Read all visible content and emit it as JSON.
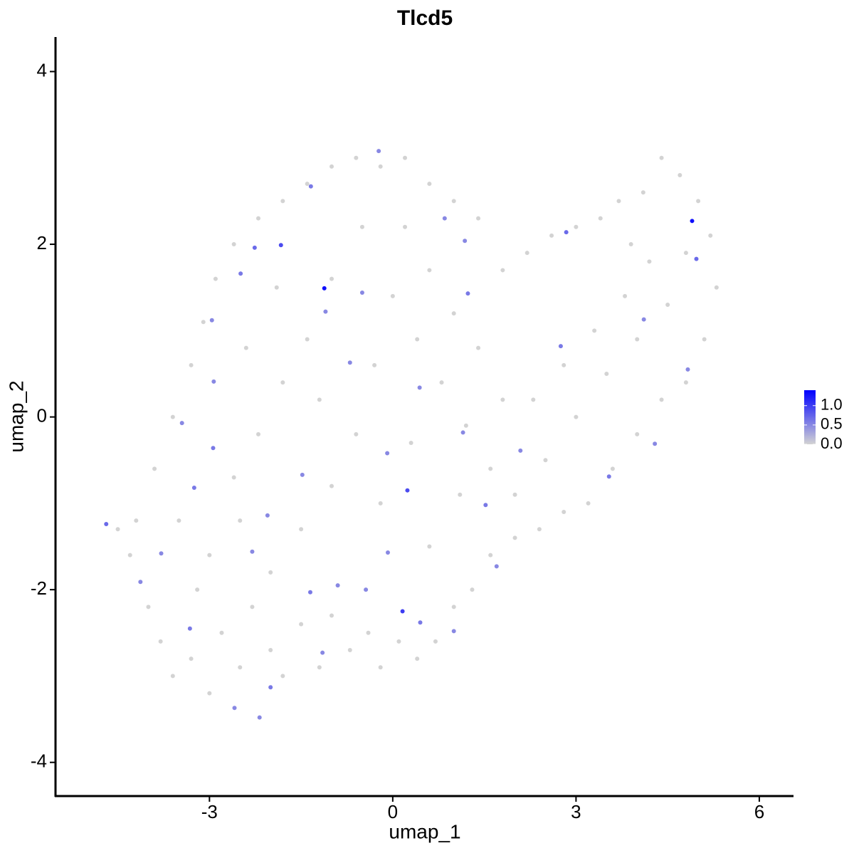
{
  "chart_data": {
    "type": "scatter",
    "title": "Tlcd5",
    "x_label": "umap_1",
    "y_label": "umap_2",
    "xlim": [
      -5.52,
      6.56
    ],
    "ylim": [
      -4.39,
      4.4
    ],
    "xticks": [
      -3,
      0,
      3,
      6
    ],
    "yticks": [
      -4,
      -2,
      0,
      2,
      4
    ],
    "color_low": "#d3d3d3",
    "color_high": "#0000ff",
    "colorbar_lim": [
      0,
      1.4
    ],
    "colorbar_ticks": [
      {
        "value": 0,
        "label": "0.0"
      },
      {
        "value": 0.5,
        "label": "0.5"
      },
      {
        "value": 1,
        "label": "1.0"
      }
    ],
    "x": [
      -4.3,
      -4.0,
      -3.8,
      -3.6,
      -3.3,
      -3.0,
      -2.8,
      -2.5,
      -2.3,
      -2.0,
      -1.8,
      -1.5,
      -1.2,
      -1.0,
      -0.7,
      -0.4,
      -0.2,
      0.1,
      0.4,
      0.7,
      1.0,
      1.3,
      1.6,
      2.0,
      2.4,
      2.8,
      3.2,
      3.6,
      4.0,
      4.4,
      4.8,
      5.1,
      5.3,
      5.2,
      5.0,
      4.7,
      4.4,
      4.1,
      3.7,
      3.4,
      3.0,
      2.6,
      2.2,
      1.8,
      1.4,
      1.0,
      0.6,
      0.2,
      -0.2,
      -0.6,
      -1.0,
      -1.4,
      -1.8,
      -2.2,
      -2.6,
      -2.9,
      -3.1,
      -3.3,
      -3.6,
      -3.9,
      -4.2,
      -4.5,
      -3.5,
      -3.0,
      -2.6,
      -2.2,
      -1.8,
      -1.4,
      -1.0,
      -0.5,
      0.0,
      0.4,
      0.8,
      1.2,
      1.6,
      2.0,
      2.5,
      3.0,
      3.5,
      4.0,
      4.5,
      4.2,
      3.8,
      3.3,
      2.8,
      2.3,
      1.8,
      1.4,
      1.0,
      0.6,
      0.2,
      -0.3,
      -0.6,
      -1.0,
      -1.5,
      -2.0,
      -2.5,
      -3.2,
      -0.2,
      0.6,
      1.1,
      0.3,
      -1.2,
      -2.4,
      -1.9,
      3.9,
      4.8,
      -4.69,
      -1.12,
      4.9,
      0.16,
      0.24,
      -1.83,
      -2.26,
      -1.34,
      -0.23,
      0.85,
      1.18,
      1.23,
      2.84,
      4.11,
      4.97,
      4.83,
      2.75,
      4.29,
      3.54,
      2.09,
      1.52,
      1.7,
      1.0,
      0.45,
      -0.44,
      -0.9,
      -1.35,
      -1.15,
      -2.0,
      -2.18,
      -2.59,
      -3.32,
      -4.13,
      -3.79,
      -3.25,
      -2.94,
      -3.45,
      -2.93,
      -2.96,
      -2.49,
      -1.1,
      -0.5,
      -0.7,
      0.44,
      -0.09,
      1.15,
      -1.48,
      -2.05,
      -2.3,
      -0.08
    ],
    "y": [
      -1.6,
      -2.2,
      -2.6,
      -3.0,
      -2.8,
      -3.2,
      -2.5,
      -2.9,
      -2.2,
      -2.7,
      -3.0,
      -2.4,
      -2.9,
      -2.3,
      -2.7,
      -2.5,
      -2.9,
      -2.6,
      -2.8,
      -2.6,
      -2.2,
      -2.0,
      -1.6,
      -1.4,
      -1.3,
      -1.1,
      -1.0,
      -0.6,
      -0.2,
      0.2,
      0.4,
      0.9,
      1.5,
      2.1,
      2.5,
      2.8,
      3.0,
      2.6,
      2.5,
      2.3,
      2.2,
      2.1,
      1.9,
      1.7,
      2.3,
      2.5,
      2.7,
      3.0,
      2.9,
      3.0,
      2.9,
      2.7,
      2.5,
      2.3,
      2.0,
      1.6,
      1.1,
      0.6,
      0.0,
      -0.6,
      -1.2,
      -1.3,
      -1.2,
      -1.6,
      -0.7,
      -0.2,
      0.4,
      0.9,
      1.6,
      2.2,
      1.4,
      0.9,
      0.4,
      -0.1,
      -0.6,
      -0.9,
      -0.5,
      0.0,
      0.5,
      0.9,
      1.3,
      1.8,
      1.4,
      1.0,
      0.6,
      0.2,
      0.2,
      0.8,
      1.2,
      1.7,
      2.2,
      0.6,
      -0.2,
      -0.8,
      -1.3,
      -1.8,
      -1.2,
      -2.0,
      -1.0,
      -1.5,
      -0.9,
      -0.3,
      0.2,
      0.8,
      1.5,
      2.0,
      1.9,
      -1.24,
      1.49,
      2.27,
      -2.25,
      -0.85,
      1.99,
      1.96,
      2.67,
      3.08,
      2.3,
      2.04,
      1.43,
      2.14,
      1.13,
      1.83,
      0.55,
      0.82,
      -0.31,
      -0.69,
      -0.39,
      -1.02,
      -1.73,
      -2.48,
      -2.38,
      -2.0,
      -1.95,
      -2.03,
      -2.73,
      -3.13,
      -3.48,
      -3.37,
      -2.45,
      -1.91,
      -1.58,
      -0.82,
      -0.36,
      -0.07,
      0.41,
      1.12,
      1.66,
      1.22,
      1.44,
      0.63,
      0.34,
      -0.42,
      -0.18,
      -0.67,
      -1.14,
      -1.56,
      -1.57
    ],
    "values": [
      0,
      0,
      0,
      0,
      0,
      0,
      0,
      0,
      0,
      0,
      0,
      0,
      0,
      0,
      0,
      0,
      0,
      0,
      0,
      0,
      0,
      0,
      0,
      0,
      0,
      0,
      0,
      0,
      0,
      0,
      0,
      0,
      0,
      0,
      0,
      0,
      0,
      0,
      0,
      0,
      0,
      0,
      0,
      0,
      0,
      0,
      0,
      0,
      0,
      0,
      0,
      0,
      0,
      0,
      0,
      0,
      0,
      0,
      0,
      0,
      0,
      0,
      0,
      0,
      0,
      0,
      0,
      0,
      0,
      0,
      0,
      0,
      0,
      0,
      0,
      0,
      0,
      0,
      0,
      0,
      0,
      0,
      0,
      0,
      0,
      0,
      0,
      0,
      0,
      0,
      0,
      0,
      0,
      0,
      0,
      0,
      0,
      0,
      0,
      0,
      0,
      0,
      0,
      0,
      0,
      0,
      0,
      0.7,
      1.3,
      1.3,
      1.0,
      0.9,
      0.9,
      0.7,
      0.6,
      0.5,
      0.5,
      0.5,
      0.6,
      0.7,
      0.5,
      0.7,
      0.5,
      0.6,
      0.5,
      0.6,
      0.5,
      0.6,
      0.5,
      0.5,
      0.6,
      0.5,
      0.5,
      0.6,
      0.5,
      0.6,
      0.5,
      0.5,
      0.6,
      0.5,
      0.5,
      0.6,
      0.6,
      0.5,
      0.5,
      0.5,
      0.6,
      0.5,
      0.5,
      0.5,
      0.5,
      0.5,
      0.5,
      0.5,
      0.5,
      0.5,
      0.5
    ]
  }
}
